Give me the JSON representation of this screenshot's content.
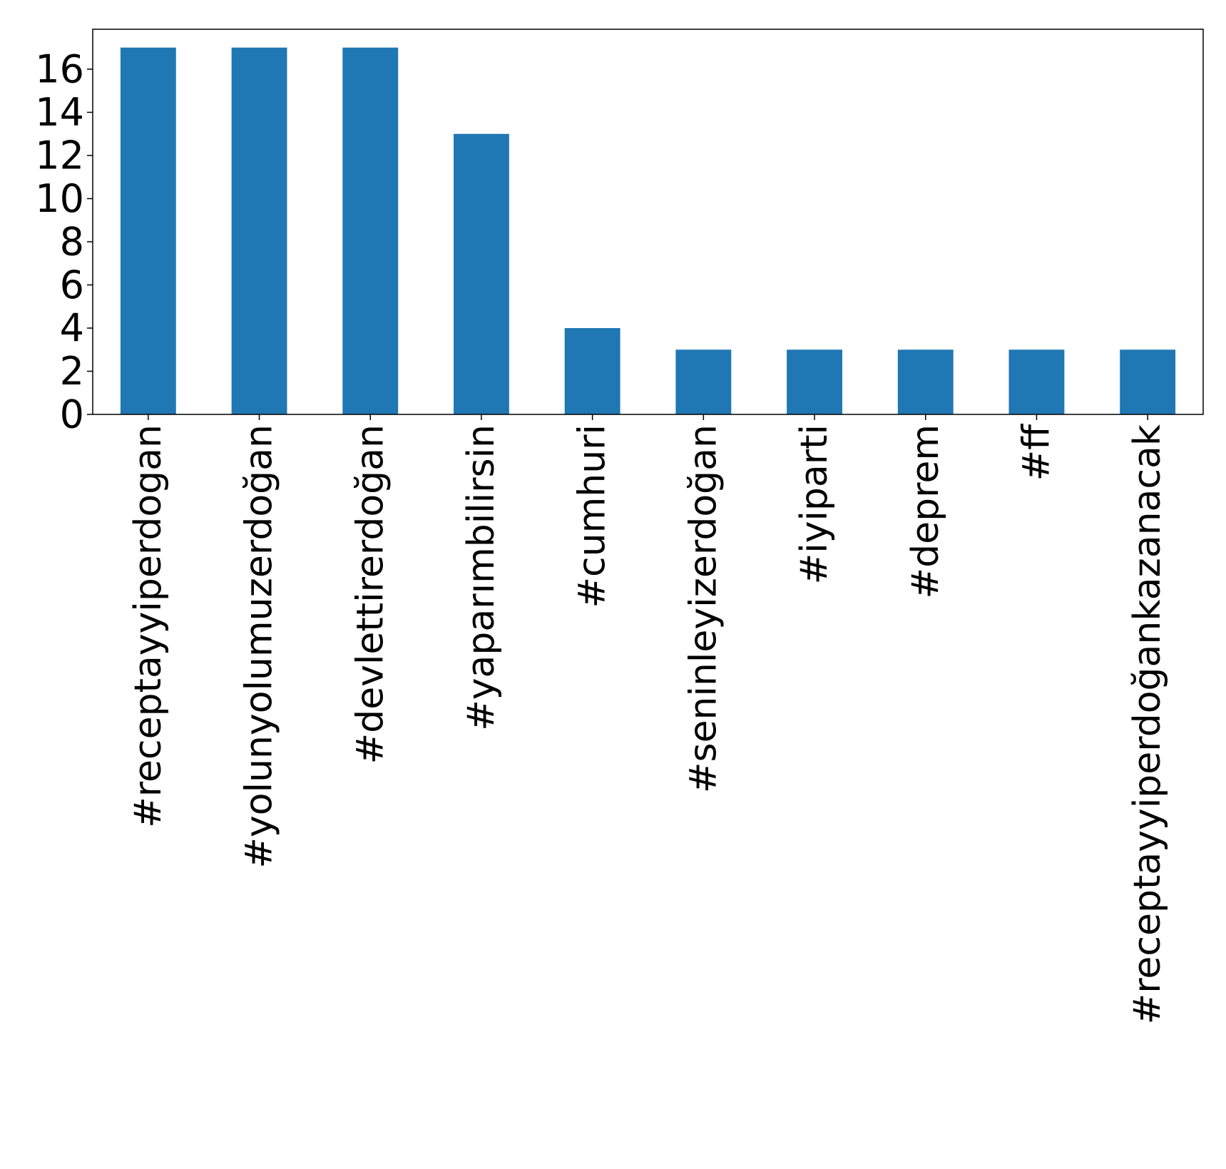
{
  "chart_data": {
    "type": "bar",
    "title": "",
    "xlabel": "",
    "ylabel": "",
    "categories": [
      "#receptayyiperdogan",
      "#yolunyolumuzerdoğan",
      "#devlettirerdoğan",
      "#yaparımbilirsin",
      "#cumhuri",
      "#seninleyizerdoğan",
      "#iyiparti",
      "#deprem",
      "#ff",
      "#receptayyiperdoğankazanacak"
    ],
    "values": [
      17,
      17,
      17,
      13,
      4,
      3,
      3,
      3,
      3,
      3
    ],
    "ylim": [
      0,
      17.85
    ],
    "yticks": [
      "0",
      "2",
      "4",
      "6",
      "8",
      "10",
      "12",
      "14",
      "16"
    ],
    "bar_color": "#1f77b4",
    "grid": false,
    "legend": "none"
  }
}
